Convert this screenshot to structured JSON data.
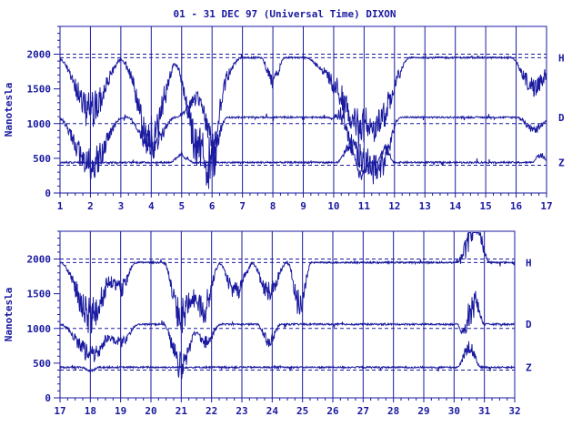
{
  "title": "01 - 31 DEC 97 (Universal Time) DIXON",
  "ylabel": "Nanotesla",
  "colors": {
    "ink": "#1a1aa0",
    "background": "#ffffff"
  },
  "chart_data": [
    {
      "type": "line",
      "panel": "top",
      "ylabel": "Nanotesla",
      "x_ticks": [
        "1",
        "2",
        "3",
        "4",
        "5",
        "6",
        "7",
        "8",
        "9",
        "10",
        "11",
        "12",
        "13",
        "14",
        "15",
        "16",
        "17"
      ],
      "xlim": [
        1,
        17
      ],
      "y_ticks": [
        "0",
        "500",
        "1000",
        "1500",
        "2000"
      ],
      "ylim": [
        0,
        2400
      ],
      "grid": "vertical day lines",
      "reference_lines": [
        2000,
        1950,
        1000,
        400
      ],
      "series": [
        {
          "name": "H",
          "baseline": 1950,
          "events": [
            [
              2.0,
              1.1,
              900
            ],
            [
              3.9,
              1.0,
              850
            ],
            [
              4.1,
              0.8,
              550
            ],
            [
              5.6,
              0.9,
              750
            ],
            [
              5.8,
              1.2,
              900
            ],
            [
              6.0,
              0.4,
              600
            ],
            [
              8.0,
              0.4,
              400
            ],
            [
              10.5,
              1.5,
              600
            ],
            [
              11.0,
              1.0,
              650
            ],
            [
              11.7,
              0.8,
              700
            ],
            [
              16.6,
              0.8,
              500
            ]
          ]
        },
        {
          "name": "D",
          "baseline": 1090,
          "events": [
            [
              2.0,
              1.1,
              800
            ],
            [
              4.0,
              0.8,
              500
            ],
            [
              5.6,
              0.8,
              -350
            ],
            [
              6.0,
              0.5,
              600
            ],
            [
              10.3,
              0.4,
              -250
            ],
            [
              11.0,
              1.2,
              700
            ],
            [
              11.6,
              0.6,
              500
            ],
            [
              16.6,
              0.6,
              200
            ]
          ]
        },
        {
          "name": "Z",
          "baseline": 440,
          "events": [
            [
              5.0,
              0.4,
              -120
            ],
            [
              10.5,
              0.4,
              -250
            ],
            [
              10.9,
              0.3,
              230
            ],
            [
              11.7,
              0.3,
              -230
            ],
            [
              16.8,
              0.3,
              -120
            ]
          ]
        }
      ]
    },
    {
      "type": "line",
      "panel": "bottom",
      "ylabel": "Nanotesla",
      "x_ticks": [
        "17",
        "18",
        "19",
        "20",
        "21",
        "22",
        "23",
        "24",
        "25",
        "26",
        "27",
        "28",
        "29",
        "30",
        "31",
        "32"
      ],
      "xlim": [
        17,
        32
      ],
      "y_ticks": [
        "0",
        "500",
        "1000",
        "1500",
        "2000"
      ],
      "ylim": [
        0,
        2400
      ],
      "grid": "vertical day lines",
      "reference_lines": [
        2000,
        1950,
        1000,
        400
      ],
      "series": [
        {
          "name": "H",
          "baseline": 1950,
          "events": [
            [
              18.0,
              1.0,
              900
            ],
            [
              19.0,
              0.5,
              450
            ],
            [
              21.0,
              0.6,
              900
            ],
            [
              21.7,
              0.6,
              800
            ],
            [
              22.8,
              0.6,
              500
            ],
            [
              23.9,
              0.6,
              500
            ],
            [
              24.9,
              0.4,
              700
            ],
            [
              30.6,
              0.6,
              -800
            ],
            [
              30.4,
              0.4,
              250
            ]
          ]
        },
        {
          "name": "D",
          "baseline": 1060,
          "events": [
            [
              18.0,
              1.0,
              500
            ],
            [
              19.0,
              0.6,
              300
            ],
            [
              21.0,
              0.6,
              700
            ],
            [
              21.8,
              0.5,
              300
            ],
            [
              23.9,
              0.4,
              300
            ],
            [
              30.6,
              0.4,
              -700
            ],
            [
              30.5,
              0.4,
              500
            ]
          ]
        },
        {
          "name": "Z",
          "baseline": 440,
          "events": [
            [
              30.5,
              0.4,
              -350
            ],
            [
              18.0,
              0.3,
              60
            ]
          ]
        }
      ]
    }
  ]
}
